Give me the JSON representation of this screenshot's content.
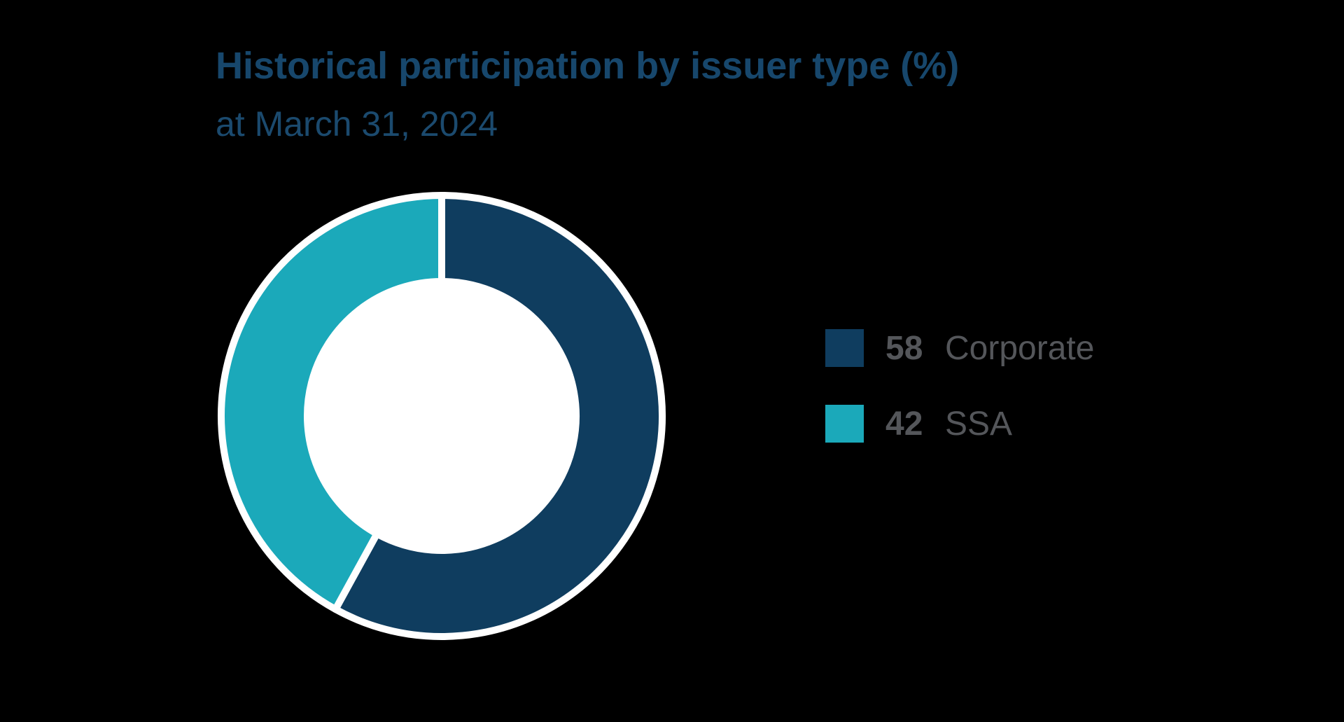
{
  "title": "Historical participation by issuer type (%)",
  "subtitle": "at March 31, 2024",
  "colors": {
    "background": "#000000",
    "title_text": "#17476C",
    "subtitle_text": "#1B4A6E",
    "legend_text": "#54565A",
    "corporate": "#0F3D5F",
    "ssa": "#1BA9BA",
    "donut_hole": "#FFFFFF",
    "segment_border": "#FFFFFF"
  },
  "chart_data": {
    "type": "pie",
    "donut": true,
    "title": "Historical participation by issuer type (%)",
    "subtitle": "at March 31, 2024",
    "start_angle_deg": 0,
    "direction": "clockwise",
    "inner_radius_ratio": 0.61,
    "legend_position": "right",
    "series": [
      {
        "label": "Corporate",
        "value": 58,
        "color": "#0F3D5F"
      },
      {
        "label": "SSA",
        "value": 42,
        "color": "#1BA9BA"
      }
    ]
  },
  "legend": {
    "items": [
      {
        "value": "58",
        "label": "Corporate",
        "color": "#0F3D5F"
      },
      {
        "value": "42",
        "label": "SSA",
        "color": "#1BA9BA"
      }
    ]
  }
}
